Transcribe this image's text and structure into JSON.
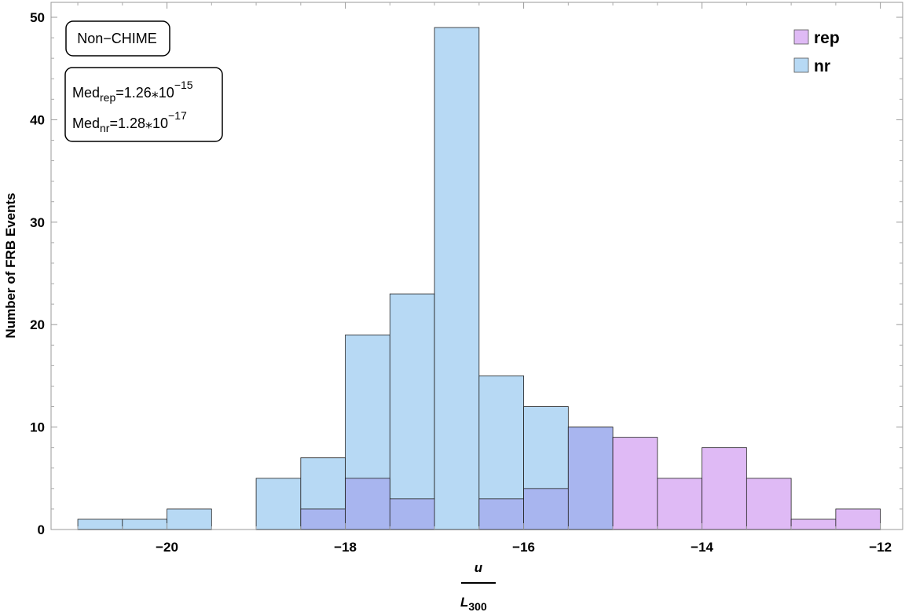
{
  "chart_data": {
    "type": "bar",
    "subtype": "overlapping-histogram",
    "xlabel_numerator": "u",
    "xlabel_denominator": "L",
    "xlabel_denominator_sub": "300",
    "ylabel": "Number of FRB Events",
    "xlim": [
      -21.3,
      -11.75
    ],
    "ylim": [
      0,
      50
    ],
    "x_ticks": [
      -20,
      -18,
      -16,
      -14,
      -12
    ],
    "x_tick_labels": [
      "−20",
      "−18",
      "−16",
      "−14",
      "−12"
    ],
    "y_ticks": [
      0,
      10,
      20,
      30,
      40,
      50
    ],
    "y_tick_labels": [
      "0",
      "10",
      "20",
      "30",
      "40",
      "50"
    ],
    "bin_width": 0.5,
    "grid": false,
    "legend_position": "top-right",
    "annotation_box": "Non−CHIME",
    "median_box": {
      "rep": {
        "prefix": "Med",
        "sub": "rep",
        "value": "=1.26⁎10",
        "exp": "−15"
      },
      "nr": {
        "prefix": "Med",
        "sub": "nr",
        "value": "=1.28⁎10",
        "exp": "−17"
      }
    },
    "overlap_color": "#a8b5ef",
    "series": [
      {
        "name": "rep",
        "color": "#dfbaf5",
        "bins": [
          {
            "x0": -18.5,
            "x1": -18.0,
            "count": 2
          },
          {
            "x0": -18.0,
            "x1": -17.5,
            "count": 5
          },
          {
            "x0": -17.5,
            "x1": -17.0,
            "count": 3
          },
          {
            "x0": -16.5,
            "x1": -16.0,
            "count": 3
          },
          {
            "x0": -16.0,
            "x1": -15.5,
            "count": 4
          },
          {
            "x0": -15.5,
            "x1": -15.0,
            "count": 10
          },
          {
            "x0": -15.0,
            "x1": -14.5,
            "count": 9
          },
          {
            "x0": -14.5,
            "x1": -14.0,
            "count": 5
          },
          {
            "x0": -14.0,
            "x1": -13.5,
            "count": 8
          },
          {
            "x0": -13.5,
            "x1": -13.0,
            "count": 5
          },
          {
            "x0": -13.0,
            "x1": -12.5,
            "count": 1
          },
          {
            "x0": -12.5,
            "x1": -12.0,
            "count": 2
          }
        ]
      },
      {
        "name": "nr",
        "color": "#b7d9f4",
        "bins": [
          {
            "x0": -21.0,
            "x1": -20.5,
            "count": 1
          },
          {
            "x0": -20.5,
            "x1": -20.0,
            "count": 1
          },
          {
            "x0": -20.0,
            "x1": -19.5,
            "count": 2
          },
          {
            "x0": -19.0,
            "x1": -18.5,
            "count": 5
          },
          {
            "x0": -18.5,
            "x1": -18.0,
            "count": 7
          },
          {
            "x0": -18.0,
            "x1": -17.5,
            "count": 19
          },
          {
            "x0": -17.5,
            "x1": -17.0,
            "count": 23
          },
          {
            "x0": -17.0,
            "x1": -16.5,
            "count": 49
          },
          {
            "x0": -16.5,
            "x1": -16.0,
            "count": 15
          },
          {
            "x0": -16.0,
            "x1": -15.5,
            "count": 12
          },
          {
            "x0": -15.5,
            "x1": -15.0,
            "count": 10
          }
        ]
      }
    ]
  }
}
